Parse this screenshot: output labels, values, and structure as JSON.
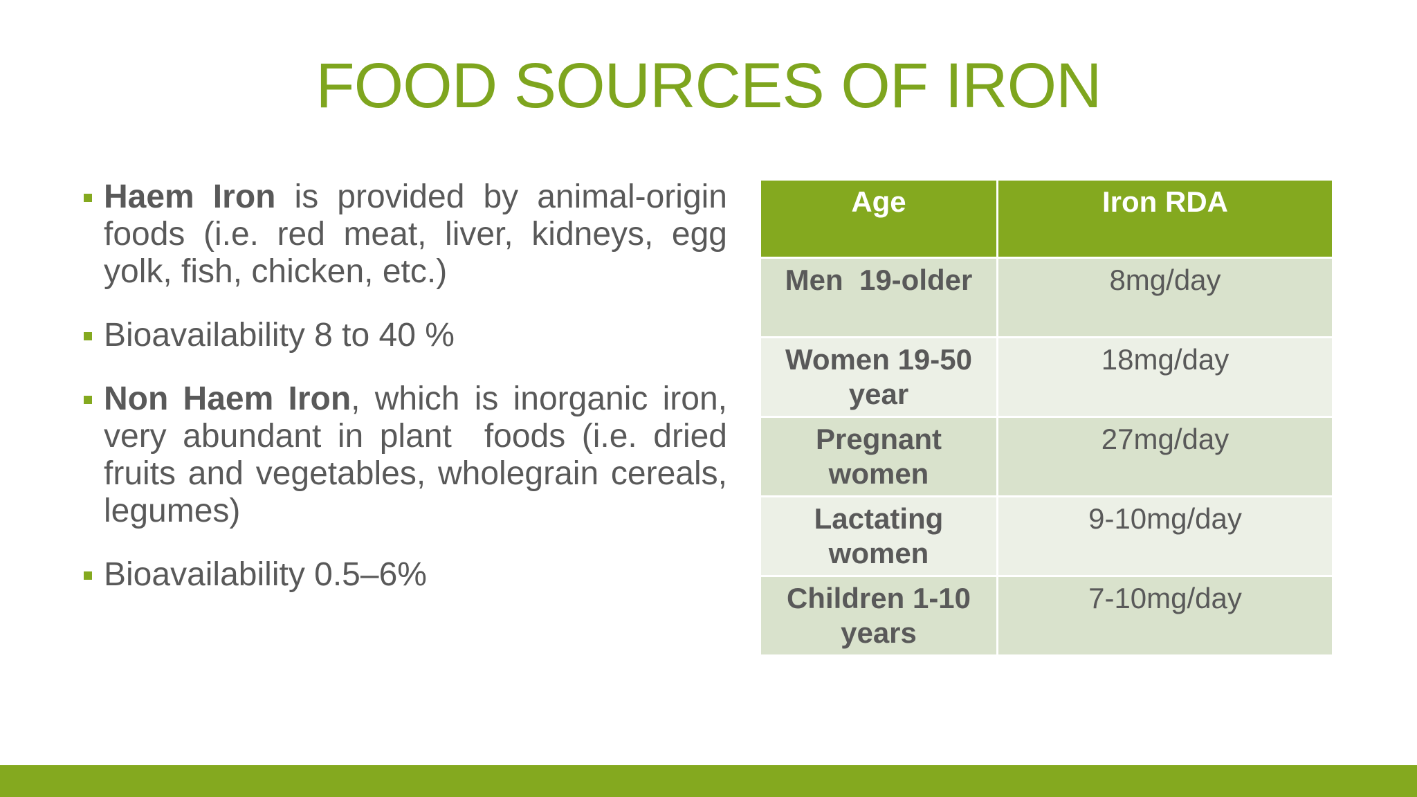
{
  "title": "FOOD SOURCES OF IRON",
  "bullets": [
    {
      "bold": "Haem Iron",
      "text": " is provided by animal-origin foods (i.e. red meat, liver, kidneys, egg yolk, fish, chicken, etc.)"
    },
    {
      "text": "Bioavailability 8 to 40 %"
    },
    {
      "bold": "Non Haem Iron",
      "text": ", which is inorganic iron, very abundant in plant  foods (i.e. dried fruits and vegetables, wholegrain cereals, legumes)"
    },
    {
      "text": "Bioavailability 0.5–6%"
    }
  ],
  "table": {
    "header": [
      "Age",
      "Iron RDA"
    ],
    "rows": [
      [
        "Men  19-older",
        "8mg/day"
      ],
      [
        "Women 19-50 year",
        "18mg/day"
      ],
      [
        "Pregnant women",
        "27mg/day"
      ],
      [
        "Lactating women",
        "9-10mg/day"
      ],
      [
        "Children 1-10 years",
        "7-10mg/day"
      ]
    ]
  }
}
